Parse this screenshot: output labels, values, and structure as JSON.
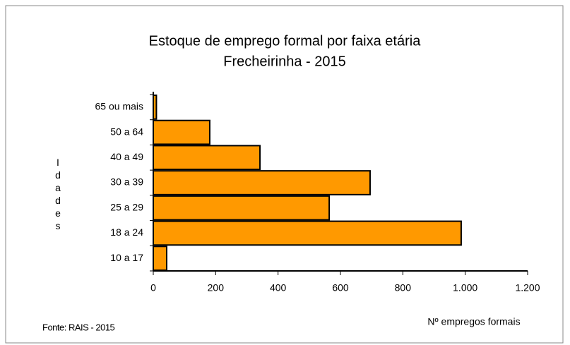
{
  "chart_data": {
    "type": "barh",
    "title": "Estoque de emprego formal por faixa etária",
    "subtitle": "Frecheirinha - 2015",
    "y_label": "Idades",
    "x_label": "Nº empregos formais",
    "note": "Fonte: RAIS - 2015",
    "categories": [
      "10 a 17",
      "18 a 24",
      "25 a 29",
      "30 a 39",
      "40 a 49",
      "50 a 64",
      "65 ou mais"
    ],
    "values": [
      43,
      987,
      564,
      695,
      342,
      181,
      10
    ],
    "color": "#ff9900",
    "xlim": [
      0,
      1200
    ],
    "xticks": [
      0,
      200,
      400,
      600,
      800,
      {
        "value": 1000,
        "label": "1.000"
      },
      {
        "value": 1200,
        "label": "1.200"
      }
    ]
  }
}
